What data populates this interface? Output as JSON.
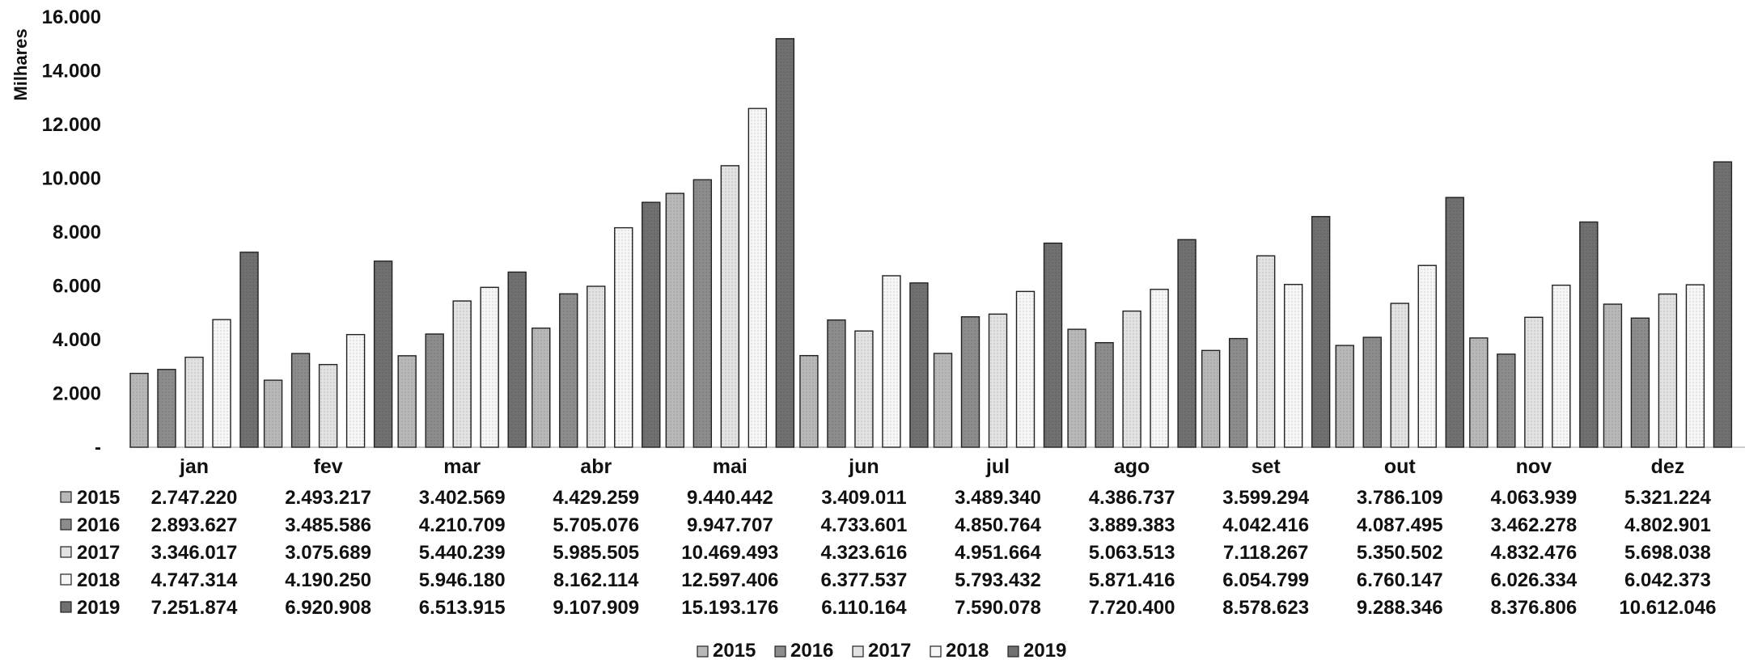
{
  "chart_data": {
    "type": "bar",
    "ylabel": "Milhares",
    "ylim": [
      0,
      16000
    ],
    "yticks": [
      0,
      2000,
      4000,
      6000,
      8000,
      10000,
      12000,
      14000,
      16000
    ],
    "ytick_labels": [
      "-",
      "2.000",
      "4.000",
      "6.000",
      "8.000",
      "10.000",
      "12.000",
      "14.000",
      "16.000"
    ],
    "categories": [
      "jan",
      "fev",
      "mar",
      "abr",
      "mai",
      "jun",
      "jul",
      "ago",
      "set",
      "out",
      "nov",
      "dez"
    ],
    "legend_position": "bottom",
    "data_table": true,
    "series": [
      {
        "name": "2015",
        "color": "#b8b8b8",
        "values": [
          2747.22,
          2493.217,
          3402.569,
          4429.259,
          9440.442,
          3409.011,
          3489.34,
          4386.737,
          3599.294,
          3786.109,
          4063.939,
          5321.224
        ],
        "value_labels": [
          "2.747.220",
          "2.493.217",
          "3.402.569",
          "4.429.259",
          "9.440.442",
          "3.409.011",
          "3.489.340",
          "4.386.737",
          "3.599.294",
          "3.786.109",
          "4.063.939",
          "5.321.224"
        ]
      },
      {
        "name": "2016",
        "color": "#8c8c8c",
        "values": [
          2893.627,
          3485.586,
          4210.709,
          5705.076,
          9947.707,
          4733.601,
          4850.764,
          3889.383,
          4042.416,
          4087.495,
          3462.278,
          4802.901
        ],
        "value_labels": [
          "2.893.627",
          "3.485.586",
          "4.210.709",
          "5.705.076",
          "9.947.707",
          "4.733.601",
          "4.850.764",
          "3.889.383",
          "4.042.416",
          "4.087.495",
          "3.462.278",
          "4.802.901"
        ]
      },
      {
        "name": "2017",
        "color": "#e2e2e2",
        "values": [
          3346.017,
          3075.689,
          5440.239,
          5985.505,
          10469.493,
          4323.616,
          4951.664,
          5063.513,
          7118.267,
          5350.502,
          4832.476,
          5698.038
        ],
        "value_labels": [
          "3.346.017",
          "3.075.689",
          "5.440.239",
          "5.985.505",
          "10.469.493",
          "4.323.616",
          "4.951.664",
          "5.063.513",
          "7.118.267",
          "5.350.502",
          "4.832.476",
          "5.698.038"
        ]
      },
      {
        "name": "2018",
        "color": "#f6f6f6",
        "values": [
          4747.314,
          4190.25,
          5946.18,
          8162.114,
          12597.406,
          6377.537,
          5793.432,
          5871.416,
          6054.799,
          6760.147,
          6026.334,
          6042.373
        ],
        "value_labels": [
          "4.747.314",
          "4.190.250",
          "5.946.180",
          "8.162.114",
          "12.597.406",
          "6.377.537",
          "5.793.432",
          "5.871.416",
          "6.054.799",
          "6.760.147",
          "6.026.334",
          "6.042.373"
        ]
      },
      {
        "name": "2019",
        "color": "#707070",
        "values": [
          7251.874,
          6920.908,
          6513.915,
          9107.909,
          15193.176,
          6110.164,
          7590.078,
          7720.4,
          8578.623,
          9288.346,
          8376.806,
          10612.046
        ],
        "value_labels": [
          "7.251.874",
          "6.920.908",
          "6.513.915",
          "9.107.909",
          "15.193.176",
          "6.110.164",
          "7.590.078",
          "7.720.400",
          "8.578.623",
          "9.288.346",
          "8.376.806",
          "10.612.046"
        ]
      }
    ]
  }
}
